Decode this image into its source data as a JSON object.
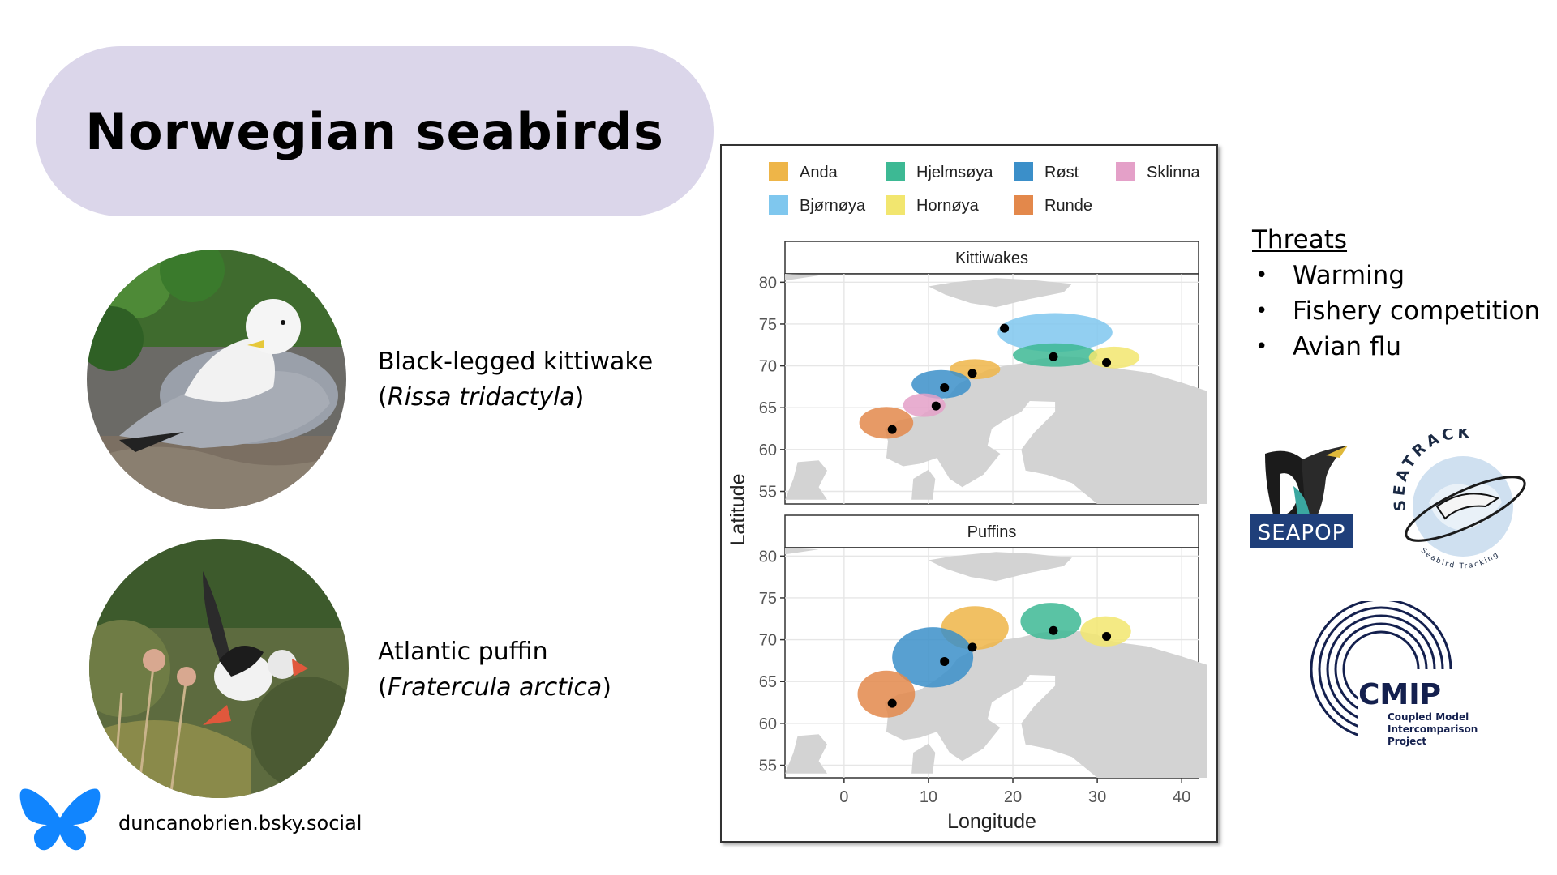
{
  "slide": {
    "title": "Norwegian seabirds"
  },
  "species": [
    {
      "common_name": "Black-legged kittiwake",
      "latin_open": "(",
      "latin_name": "Rissa tridactyla",
      "latin_close": ")"
    },
    {
      "common_name": "Atlantic puffin",
      "latin_open": "(",
      "latin_name": "Fratercula arctica",
      "latin_close": ")"
    }
  ],
  "social": {
    "icon": "butterfly-icon",
    "handle": "duncanobrien.bsky.social",
    "icon_color": "#1185fe"
  },
  "threats": {
    "heading": "Threats",
    "items": [
      "Warming",
      "Fishery competition",
      "Avian flu"
    ]
  },
  "logos": {
    "seapop": "SEAPOP",
    "seatrack": "SEATRACK",
    "seatrack_sub": "Seabird Tracking",
    "cmip": "CMIP",
    "cmip_sub": [
      "Coupled Model",
      "Intercomparison",
      "Project"
    ]
  },
  "chart_data": {
    "type": "map",
    "xlabel": "Longitude",
    "ylabel": "Latitude",
    "xlim": [
      -7,
      42
    ],
    "ylim": [
      53.5,
      81
    ],
    "xticks": [
      0,
      10,
      20,
      30,
      40
    ],
    "yticks": [
      55,
      60,
      65,
      70,
      75,
      80
    ],
    "grid": true,
    "legend_position": "top",
    "colonies": [
      {
        "name": "Anda",
        "color": "#eeb548",
        "lon": 15.2,
        "lat": 69.1
      },
      {
        "name": "Bjørnøya",
        "color": "#7fc7ee",
        "lon": 19.0,
        "lat": 74.5
      },
      {
        "name": "Hjelmsøya",
        "color": "#3db994",
        "lon": 24.8,
        "lat": 71.1
      },
      {
        "name": "Hornøya",
        "color": "#f2e66f",
        "lon": 31.1,
        "lat": 70.4
      },
      {
        "name": "Røst",
        "color": "#3b8fc9",
        "lon": 11.9,
        "lat": 67.4
      },
      {
        "name": "Runde",
        "color": "#e3884b",
        "lon": 5.7,
        "lat": 62.4
      },
      {
        "name": "Sklinna",
        "color": "#e4a0c8",
        "lon": 10.9,
        "lat": 65.2
      }
    ],
    "panels": [
      {
        "title": "Kittiwakes",
        "ranges": [
          {
            "colony": "Bjørnøya",
            "cx": 25.0,
            "cy": 74.0,
            "rx": 6.8,
            "ry": 2.3
          },
          {
            "colony": "Hjelmsøya",
            "cx": 25.0,
            "cy": 71.3,
            "rx": 5.0,
            "ry": 1.4
          },
          {
            "colony": "Hornøya",
            "cx": 32.0,
            "cy": 71.0,
            "rx": 3.0,
            "ry": 1.3
          },
          {
            "colony": "Anda",
            "cx": 15.5,
            "cy": 69.6,
            "rx": 3.0,
            "ry": 1.2
          },
          {
            "colony": "Røst",
            "cx": 11.5,
            "cy": 67.8,
            "rx": 3.5,
            "ry": 1.7
          },
          {
            "colony": "Sklinna",
            "cx": 9.5,
            "cy": 65.3,
            "rx": 2.5,
            "ry": 1.4
          },
          {
            "colony": "Runde",
            "cx": 5.0,
            "cy": 63.2,
            "rx": 3.2,
            "ry": 1.9
          }
        ]
      },
      {
        "title": "Puffins",
        "ranges": [
          {
            "colony": "Anda",
            "cx": 15.5,
            "cy": 71.4,
            "rx": 4.0,
            "ry": 2.6
          },
          {
            "colony": "Røst",
            "cx": 10.5,
            "cy": 67.9,
            "rx": 4.8,
            "ry": 3.6
          },
          {
            "colony": "Runde",
            "cx": 5.0,
            "cy": 63.5,
            "rx": 3.4,
            "ry": 2.8
          },
          {
            "colony": "Hjelmsøya",
            "cx": 24.5,
            "cy": 72.2,
            "rx": 3.6,
            "ry": 2.2
          },
          {
            "colony": "Hornøya",
            "cx": 31.0,
            "cy": 71.0,
            "rx": 3.0,
            "ry": 1.8
          }
        ],
        "points_exclude": [
          "Bjørnøya",
          "Sklinna"
        ]
      }
    ]
  }
}
